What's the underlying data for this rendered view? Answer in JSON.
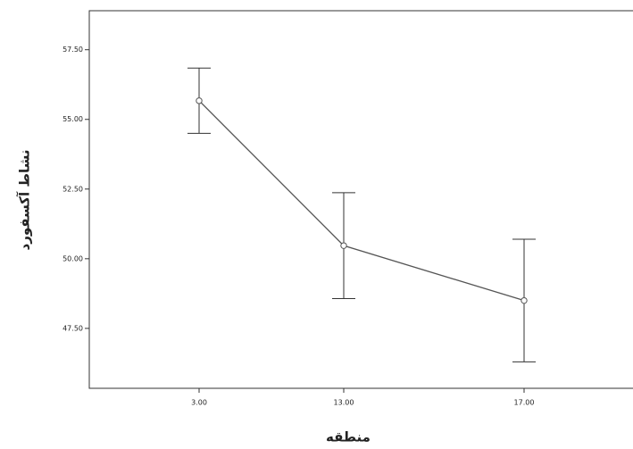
{
  "chart_data": {
    "type": "line",
    "x_label": "منطقه",
    "y_label": "نشاط آکسفورد",
    "categories": [
      "3.00",
      "13.00",
      "17.00"
    ],
    "series": [
      {
        "color": "#555555",
        "values": [
          55.67,
          50.47,
          48.5
        ],
        "errors": [
          1.17,
          1.9,
          2.2
        ]
      }
    ],
    "ylim": [
      45.35,
      58.9
    ],
    "yticks": [
      {
        "value": 47.5,
        "label": "47.50"
      },
      {
        "value": 50,
        "label": "50.00"
      },
      {
        "value": 52.5,
        "label": "52.50"
      },
      {
        "value": 55,
        "label": "55.00"
      },
      {
        "value": 57.5,
        "label": "57.50"
      }
    ]
  }
}
